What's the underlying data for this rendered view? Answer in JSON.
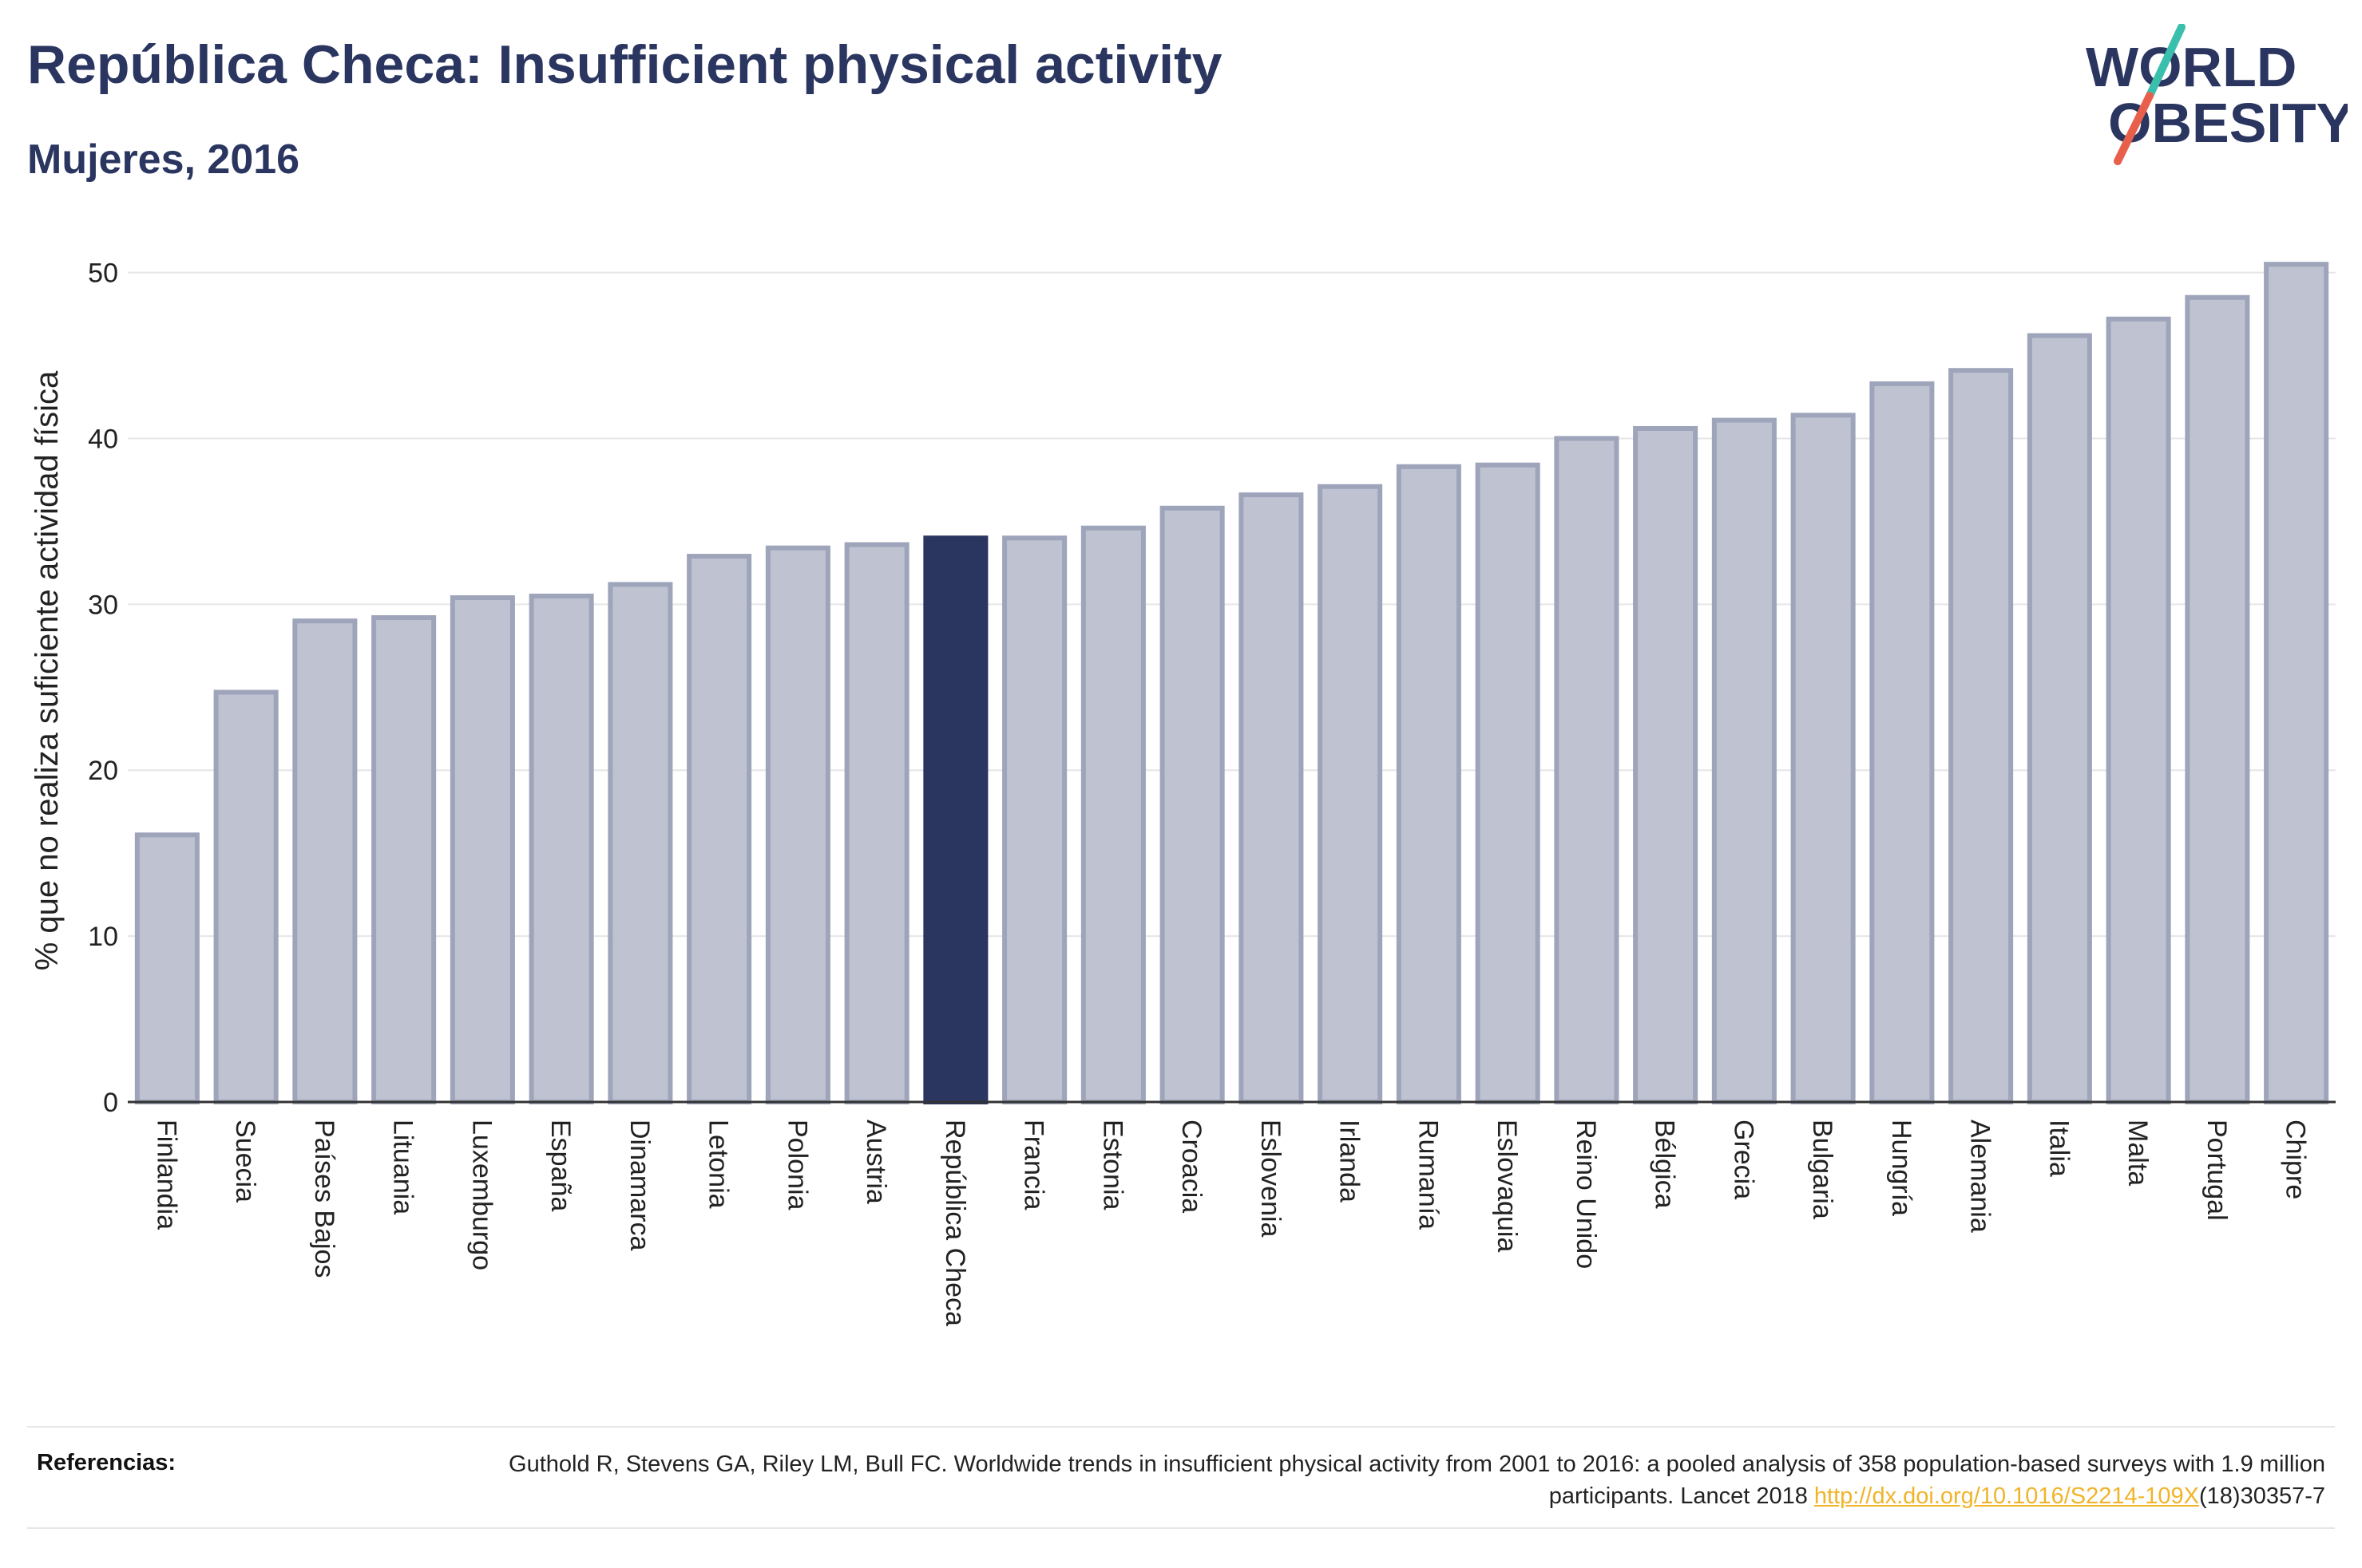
{
  "header": {
    "title": "República Checa: Insufficient physical activity",
    "subtitle": "Mujeres, 2016"
  },
  "logo": {
    "line1": "WORLD",
    "line2": "OBESITY",
    "slash_colors": [
      "#3bbfad",
      "#e8604c"
    ]
  },
  "colors": {
    "bar": "#bfc3d1",
    "bar_stroke": "#9ea4ba",
    "highlight": "#2a3560",
    "grid": "#e6e6e6",
    "axis": "#333333"
  },
  "chart_data": {
    "type": "bar",
    "ylabel": "% que no realiza suficiente actividad física",
    "xlabel": "",
    "ylim": [
      0,
      52
    ],
    "yticks": [
      0,
      10,
      20,
      30,
      40,
      50
    ],
    "grid": true,
    "highlight": "República Checa",
    "categories": [
      "Finlandia",
      "Suecia",
      "Países Bajos",
      "Lituania",
      "Luxemburgo",
      "España",
      "Dinamarca",
      "Letonia",
      "Polonia",
      "Austria",
      "República Checa",
      "Francia",
      "Estonia",
      "Croacia",
      "Eslovenia",
      "Irlanda",
      "Rumanía",
      "Eslovaquia",
      "Reino Unido",
      "Bélgica",
      "Grecia",
      "Bulgaria",
      "Hungría",
      "Alemania",
      "Italia",
      "Malta",
      "Portugal",
      "Chipre"
    ],
    "values": [
      16.1,
      24.7,
      29.0,
      29.2,
      30.4,
      30.5,
      31.2,
      32.9,
      33.4,
      33.6,
      34.0,
      34.0,
      34.6,
      35.8,
      36.6,
      37.1,
      38.3,
      38.4,
      40.0,
      40.6,
      41.1,
      41.4,
      43.3,
      44.1,
      46.2,
      47.2,
      48.5,
      50.5
    ]
  },
  "references": {
    "label": "Referencias:",
    "text_before": "Guthold R, Stevens GA, Riley LM, Bull FC. Worldwide trends in insufficient physical activity from 2001 to 2016: a pooled analysis of 358 population-based surveys with 1.9 million participants. Lancet 2018 ",
    "link": "http://dx.doi.org/10.1016/S2214-109X",
    "text_after": "(18)30357-7"
  }
}
